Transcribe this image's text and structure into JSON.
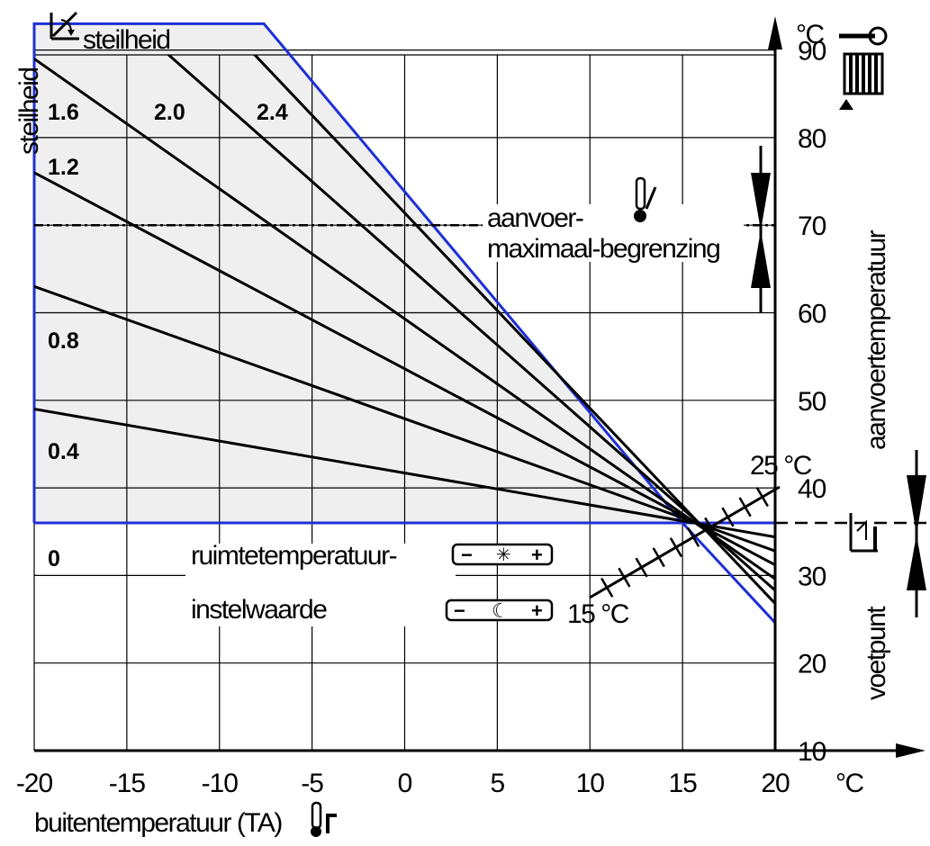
{
  "chart_data": {
    "type": "line",
    "x": [
      -20,
      20
    ],
    "xlim": [
      -20,
      20
    ],
    "ylim": [
      10,
      95
    ],
    "x_unit": "°C",
    "y_unit": "°C",
    "xticks": [
      -20,
      -15,
      -10,
      -5,
      0,
      5,
      10,
      15,
      20
    ],
    "yticks": [
      10,
      20,
      30,
      40,
      50,
      60,
      70,
      80,
      90
    ],
    "xlabel": "buitentemperatuur (TA)",
    "ylabel": "aanvoertemperatuur",
    "ylabel_left": "steilheid",
    "top_left_label": "steilheid",
    "base_point": {
      "x": 15,
      "y": 36
    },
    "series": [
      {
        "name": "0",
        "values": [
          36,
          36
        ]
      },
      {
        "name": "0.4",
        "values": [
          49,
          34.4
        ]
      },
      {
        "name": "0.8",
        "values": [
          63,
          32.8
        ]
      },
      {
        "name": "1.2",
        "values": [
          76,
          31.2
        ]
      },
      {
        "name": "1.6",
        "values": [
          89,
          29.6
        ]
      },
      {
        "name": "2.0",
        "values": [
          103,
          28.3
        ]
      },
      {
        "name": "2.4",
        "values": [
          116,
          26.8
        ]
      }
    ],
    "envelope": [
      [
        -20,
        36
      ],
      [
        -20,
        93
      ],
      [
        -7.6,
        93
      ],
      [
        15,
        36
      ],
      [
        20,
        24.6
      ]
    ],
    "limit_line": {
      "y": 70,
      "label_line1": "aanvoer-",
      "label_line2": "maximaal-begrenzing"
    },
    "foot_point_label": "voetpunt",
    "room_temp": {
      "label_line1": "ruimtetemperatuur-",
      "label_line2": "instelwaarde",
      "high": "25 °C",
      "low": "15 °C",
      "minus": "−",
      "plus": "+"
    },
    "colors": {
      "envelope": "#1f2fd6",
      "fill": "#efefef",
      "curves": "#000000",
      "grid": "#000000"
    }
  }
}
